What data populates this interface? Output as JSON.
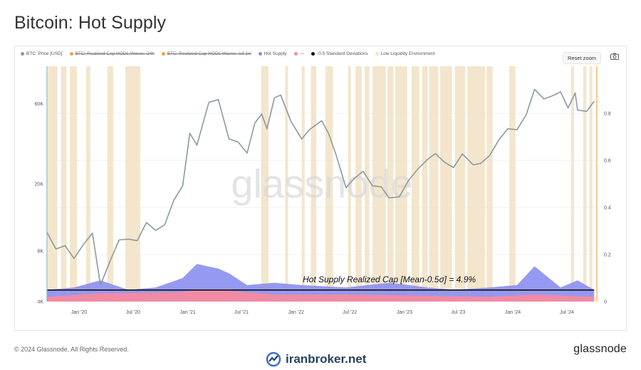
{
  "title": "Bitcoin: Hot Supply",
  "legend": [
    {
      "label": "BTC: Price [USD]",
      "color": "#8a9aa0",
      "enabled": true
    },
    {
      "label": "BTC: Realized Cap HODL Waves: 24h",
      "color": "#f0a640",
      "enabled": false
    },
    {
      "label": "BTC: Realized Cap HODL Waves: 1d-1w",
      "color": "#f0a640",
      "enabled": false
    },
    {
      "label": "Hot Supply",
      "color": "#8b8ef0",
      "enabled": true
    },
    {
      "label": "---",
      "color": "#f48aa0",
      "enabled": true
    },
    {
      "label": "-0.5 Standard Deviations",
      "color": "#111111",
      "enabled": true
    },
    {
      "label": "Low Liquidity Environment",
      "color": "#f1e2c4",
      "enabled": true
    }
  ],
  "reset_zoom": "Reset zoom",
  "camera_icon": "camera-icon",
  "annotation": "Hot Supply Realized Cap [Mean-0.5σ] = 4.9%",
  "watermark": "glassnode",
  "footer": {
    "copyright": "© 2024 Glassnode. All Rights Reserved.",
    "brand": "glassnode",
    "site": "iranbroker.net"
  },
  "chart_data": {
    "type": "line",
    "x_tick_labels": [
      "Jan '20",
      "Jul '20",
      "Jan '21",
      "Jul '21",
      "Jan '22",
      "Jul '22",
      "Jan '23",
      "Jul '23",
      "Jan '24",
      "Jul '24"
    ],
    "x_range": [
      "2019-09-15",
      "2024-10-10"
    ],
    "y_left": {
      "scale": "log",
      "range": [
        4000,
        100000
      ],
      "ticks": [
        "4K",
        "8K",
        "20K",
        "60K"
      ]
    },
    "y_right": {
      "scale": "linear",
      "range": [
        0,
        1
      ],
      "ticks": [
        "0",
        "0.2",
        "0.4",
        "0.6",
        "0.8"
      ]
    },
    "series": [
      {
        "name": "BTC: Price [USD]",
        "axis": "left",
        "color": "#8a9aa0",
        "x": [
          "2019-09-15",
          "2019-10-15",
          "2019-11-15",
          "2019-12-15",
          "2020-01-15",
          "2020-02-15",
          "2020-03-13",
          "2020-04-15",
          "2020-05-15",
          "2020-06-15",
          "2020-07-15",
          "2020-08-15",
          "2020-09-15",
          "2020-10-15",
          "2020-11-15",
          "2020-12-15",
          "2021-01-08",
          "2021-02-01",
          "2021-03-13",
          "2021-04-14",
          "2021-05-20",
          "2021-06-20",
          "2021-07-20",
          "2021-08-15",
          "2021-09-07",
          "2021-09-25",
          "2021-10-20",
          "2021-11-10",
          "2021-12-15",
          "2022-01-20",
          "2022-02-15",
          "2022-03-28",
          "2022-04-20",
          "2022-05-15",
          "2022-06-18",
          "2022-07-15",
          "2022-08-15",
          "2022-09-15",
          "2022-10-15",
          "2022-11-10",
          "2022-12-15",
          "2023-01-15",
          "2023-02-15",
          "2023-03-20",
          "2023-04-15",
          "2023-05-15",
          "2023-06-15",
          "2023-07-15",
          "2023-08-20",
          "2023-09-15",
          "2023-10-15",
          "2023-11-15",
          "2023-12-15",
          "2024-01-15",
          "2024-02-15",
          "2024-03-14",
          "2024-04-15",
          "2024-05-15",
          "2024-06-10",
          "2024-07-05",
          "2024-07-29",
          "2024-08-06",
          "2024-09-06",
          "2024-10-01"
        ],
        "values": [
          10300,
          8200,
          8600,
          7200,
          8700,
          10200,
          5000,
          7000,
          9300,
          9400,
          9200,
          11800,
          10600,
          11400,
          16000,
          19500,
          40000,
          34000,
          61000,
          63500,
          37000,
          35500,
          30500,
          46000,
          52000,
          42500,
          65000,
          67500,
          47000,
          37000,
          42000,
          47500,
          40000,
          30000,
          19000,
          21500,
          23800,
          19500,
          19200,
          16500,
          16800,
          21000,
          24500,
          28000,
          30300,
          27000,
          25000,
          30200,
          26000,
          26500,
          29500,
          36500,
          42500,
          42000,
          51500,
          73000,
          64000,
          67000,
          70500,
          56500,
          69500,
          55000,
          54000,
          62000
        ]
      },
      {
        "name": "Hot Supply",
        "axis": "right",
        "color": "#8b8ef0",
        "x": [
          "2019-09-15",
          "2019-12-15",
          "2020-03-13",
          "2020-06-15",
          "2020-09-15",
          "2020-12-15",
          "2021-02-01",
          "2021-04-14",
          "2021-05-20",
          "2021-07-20",
          "2021-10-20",
          "2022-01-20",
          "2022-06-18",
          "2022-11-10",
          "2023-01-15",
          "2023-03-20",
          "2023-06-15",
          "2023-10-15",
          "2024-01-15",
          "2024-03-14",
          "2024-06-10",
          "2024-08-06",
          "2024-10-01"
        ],
        "values": [
          0.05,
          0.06,
          0.09,
          0.05,
          0.06,
          0.1,
          0.16,
          0.14,
          0.12,
          0.07,
          0.08,
          0.07,
          0.06,
          0.08,
          0.07,
          0.06,
          0.05,
          0.06,
          0.07,
          0.15,
          0.06,
          0.09,
          0.05
        ]
      },
      {
        "name": "---",
        "axis": "right",
        "color": "#f48aa0",
        "x": [
          "2019-09-15",
          "2020-03-13",
          "2020-12-15",
          "2021-02-01",
          "2021-05-20",
          "2021-10-20",
          "2022-06-18",
          "2023-03-20",
          "2023-10-15",
          "2024-03-14",
          "2024-10-01"
        ],
        "values": [
          0.02,
          0.035,
          0.04,
          0.05,
          0.045,
          0.03,
          0.03,
          0.025,
          0.02,
          0.03,
          0.02
        ]
      },
      {
        "name": "-0.5 Standard Deviations",
        "axis": "right",
        "color": "#111111",
        "x": [
          "2019-09-15",
          "2024-10-01"
        ],
        "values": [
          0.049,
          0.049
        ]
      }
    ],
    "low_liquidity_periods": [
      [
        "2019-09-18",
        "2019-10-20"
      ],
      [
        "2019-11-01",
        "2019-11-20"
      ],
      [
        "2019-12-01",
        "2019-12-25"
      ],
      [
        "2020-01-25",
        "2020-02-08"
      ],
      [
        "2020-04-05",
        "2020-04-25"
      ],
      [
        "2020-06-05",
        "2020-07-25"
      ],
      [
        "2021-09-05",
        "2021-09-30"
      ],
      [
        "2021-11-25",
        "2021-12-05"
      ],
      [
        "2022-01-20",
        "2022-01-30"
      ],
      [
        "2022-02-20",
        "2022-03-10"
      ],
      [
        "2022-04-10",
        "2022-05-05"
      ],
      [
        "2022-06-25",
        "2022-07-05"
      ],
      [
        "2022-07-20",
        "2022-08-10"
      ],
      [
        "2022-08-20",
        "2022-09-05"
      ],
      [
        "2022-09-15",
        "2022-10-30"
      ],
      [
        "2022-11-05",
        "2022-11-25"
      ],
      [
        "2022-12-01",
        "2023-01-10"
      ],
      [
        "2023-01-25",
        "2023-02-20"
      ],
      [
        "2023-03-01",
        "2023-03-20"
      ],
      [
        "2023-03-25",
        "2023-04-25"
      ],
      [
        "2023-05-01",
        "2023-06-10"
      ],
      [
        "2023-06-20",
        "2023-07-25"
      ],
      [
        "2023-08-01",
        "2023-09-30"
      ],
      [
        "2023-10-05",
        "2023-10-25"
      ],
      [
        "2023-12-20",
        "2024-01-10"
      ],
      [
        "2024-07-15",
        "2024-07-25"
      ],
      [
        "2024-08-25",
        "2024-09-05"
      ],
      [
        "2024-09-15",
        "2024-09-25"
      ]
    ]
  }
}
